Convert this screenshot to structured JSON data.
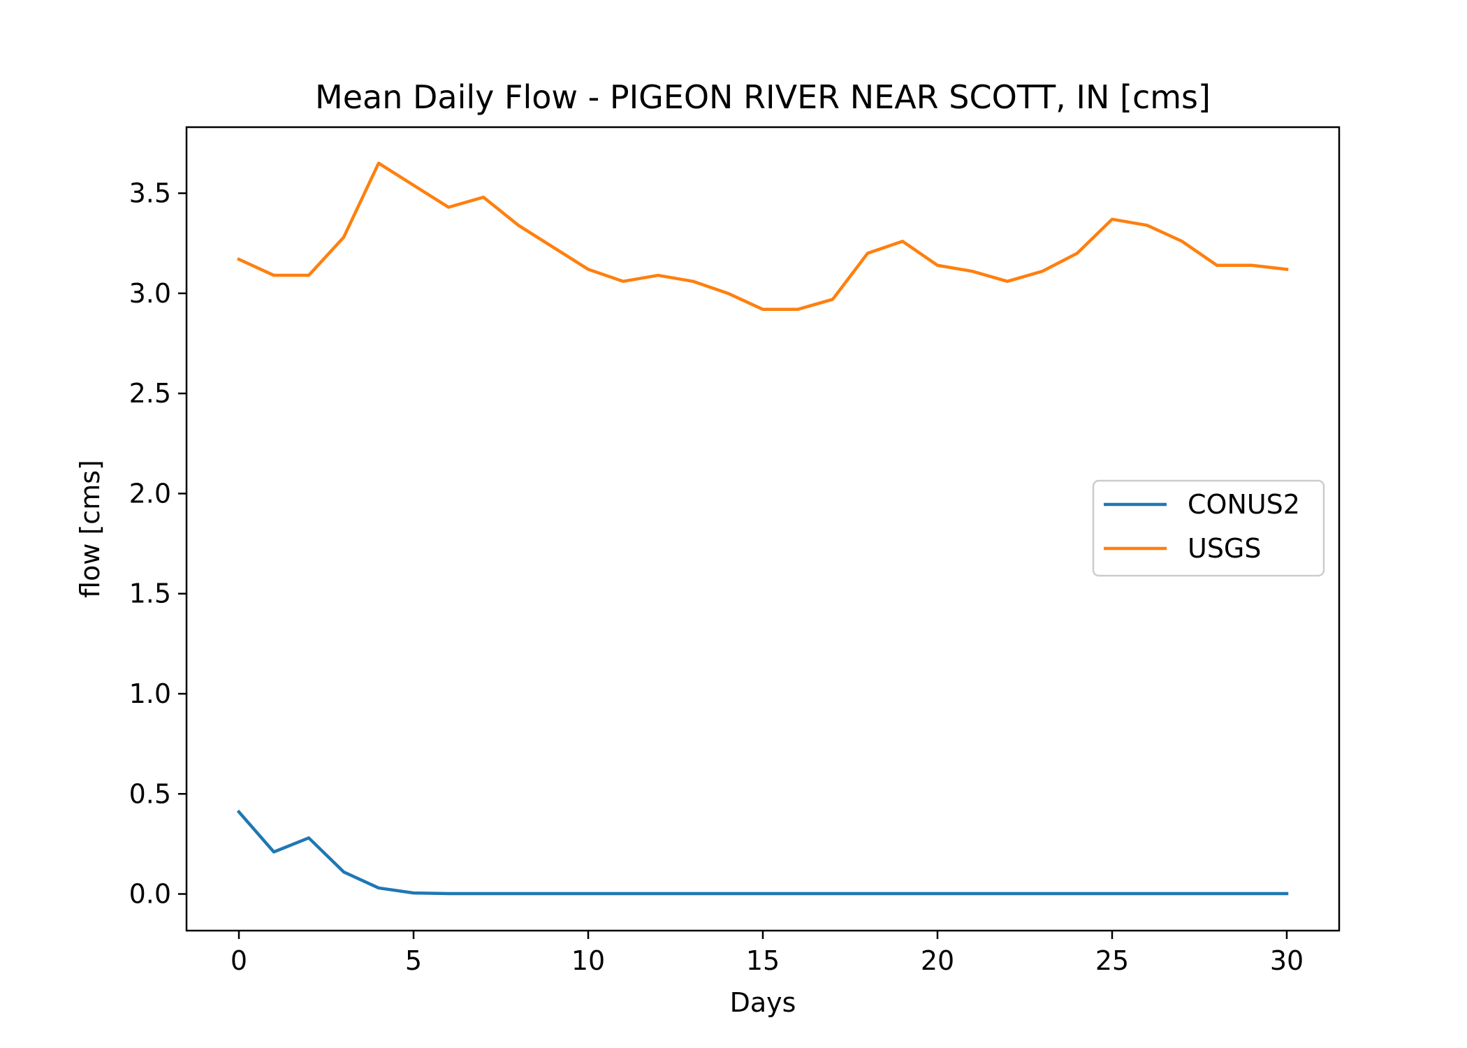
{
  "chart_data": {
    "type": "line",
    "title": "Mean Daily Flow - PIGEON RIVER NEAR SCOTT, IN [cms]",
    "xlabel": "Days",
    "ylabel": "flow [cms]",
    "xlim": [
      -1.5,
      31.5
    ],
    "ylim": [
      -0.183,
      3.83
    ],
    "xticks": [
      0,
      5,
      10,
      15,
      20,
      25,
      30
    ],
    "xtick_labels": [
      "0",
      "5",
      "10",
      "15",
      "20",
      "25",
      "30"
    ],
    "yticks": [
      0.0,
      0.5,
      1.0,
      1.5,
      2.0,
      2.5,
      3.0,
      3.5
    ],
    "ytick_labels": [
      "0.0",
      "0.5",
      "1.0",
      "1.5",
      "2.0",
      "2.5",
      "3.0",
      "3.5"
    ],
    "grid": false,
    "legend": "center-right",
    "x": [
      0,
      1,
      2,
      3,
      4,
      5,
      6,
      7,
      8,
      9,
      10,
      11,
      12,
      13,
      14,
      15,
      16,
      17,
      18,
      19,
      20,
      21,
      22,
      23,
      24,
      25,
      26,
      27,
      28,
      29,
      30
    ],
    "series": [
      {
        "name": "CONUS2",
        "color": "#1f77b4",
        "values": [
          0.41,
          0.21,
          0.28,
          0.11,
          0.03,
          0.005,
          0.002,
          0.002,
          0.002,
          0.002,
          0.002,
          0.002,
          0.002,
          0.002,
          0.002,
          0.002,
          0.002,
          0.002,
          0.002,
          0.002,
          0.002,
          0.002,
          0.002,
          0.002,
          0.002,
          0.002,
          0.002,
          0.002,
          0.002,
          0.002,
          0.002
        ]
      },
      {
        "name": "USGS",
        "color": "#ff7f0e",
        "values": [
          3.17,
          3.09,
          3.09,
          3.28,
          3.65,
          3.54,
          3.43,
          3.48,
          3.34,
          3.23,
          3.12,
          3.06,
          3.09,
          3.06,
          3.0,
          2.92,
          2.92,
          2.97,
          3.2,
          3.26,
          3.14,
          3.11,
          3.06,
          3.11,
          3.2,
          3.37,
          3.34,
          3.26,
          3.14,
          3.14,
          3.12
        ]
      }
    ]
  }
}
